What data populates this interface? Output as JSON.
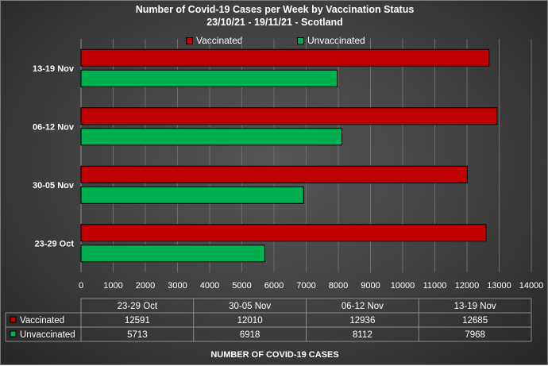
{
  "chart_data": {
    "type": "bar",
    "orientation": "horizontal",
    "title": "Number of Covid-19 Cases per Week by Vaccination Status",
    "subtitle": "23/10/21 - 19/11/21 - Scotland",
    "xlabel": "NUMBER OF COVID-19 CASES",
    "ylabel": "",
    "xlim": [
      0,
      14000
    ],
    "x_ticks": [
      0,
      1000,
      2000,
      3000,
      4000,
      5000,
      6000,
      7000,
      8000,
      9000,
      10000,
      11000,
      12000,
      13000,
      14000
    ],
    "categories": [
      "23-29 Oct",
      "30-05 Nov",
      "06-12 Nov",
      "13-19 Nov"
    ],
    "series": [
      {
        "name": "Vaccinated",
        "values": [
          12591,
          12010,
          12936,
          12685
        ],
        "color": "#c00000"
      },
      {
        "name": "Unvaccinated",
        "values": [
          5713,
          6918,
          8112,
          7968
        ],
        "color": "#00b050"
      }
    ],
    "legend": "top",
    "grid": true,
    "data_table": true
  }
}
